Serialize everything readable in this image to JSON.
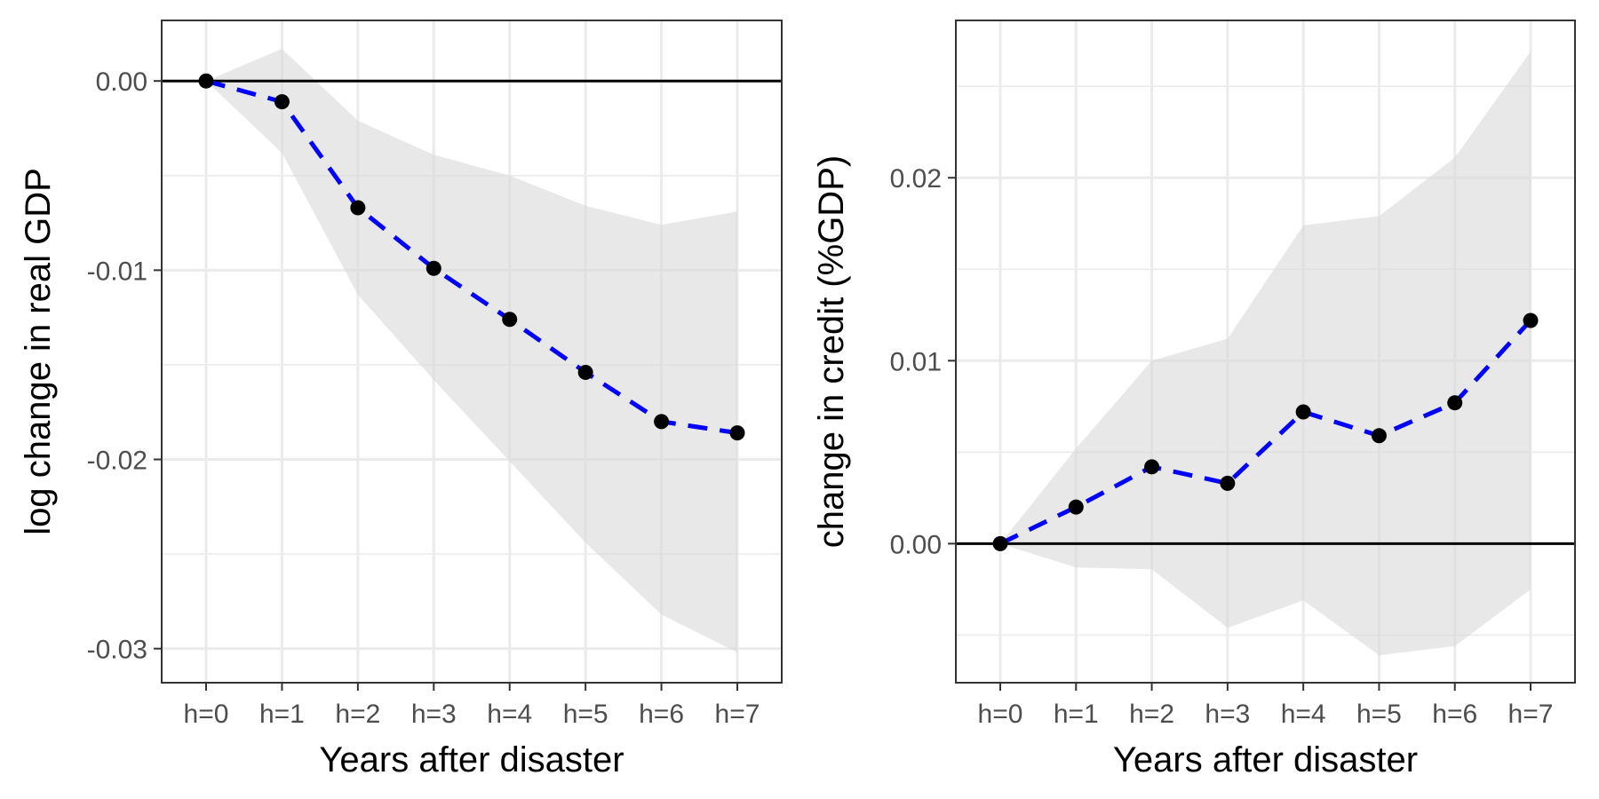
{
  "chart_data": [
    {
      "type": "line",
      "title": "",
      "xlabel": "Years after disaster",
      "ylabel": "log change in real GDP",
      "categories": [
        "h=0",
        "h=1",
        "h=2",
        "h=3",
        "h=4",
        "h=5",
        "h=6",
        "h=7"
      ],
      "series": [
        {
          "values": [
            0.0,
            -0.0011,
            -0.0067,
            -0.0099,
            -0.0126,
            -0.0154,
            -0.018,
            -0.0186
          ]
        }
      ],
      "ci_upper": [
        0.0,
        0.0017,
        -0.0021,
        -0.0039,
        -0.005,
        -0.0066,
        -0.0076,
        -0.0069
      ],
      "ci_lower": [
        0.0,
        -0.0038,
        -0.0113,
        -0.0158,
        -0.0201,
        -0.0244,
        -0.0282,
        -0.0302
      ],
      "ylim": [
        -0.0318,
        0.0032
      ],
      "yticks": [
        0.0,
        -0.01,
        -0.02,
        -0.03
      ],
      "ytick_labels": [
        "0.00",
        "-0.01",
        "-0.02",
        "-0.03"
      ],
      "hline": 0,
      "grid": true,
      "line_style": "dashed",
      "line_color": "#0000ff",
      "point_color": "#000000",
      "band_color": "#d9d9d9"
    },
    {
      "type": "line",
      "title": "",
      "xlabel": "Years after disaster",
      "ylabel": "change in credit (%GDP)",
      "categories": [
        "h=0",
        "h=1",
        "h=2",
        "h=3",
        "h=4",
        "h=5",
        "h=6",
        "h=7"
      ],
      "series": [
        {
          "values": [
            0.0,
            0.002,
            0.0042,
            0.0033,
            0.0072,
            0.0059,
            0.0077,
            0.0122
          ]
        }
      ],
      "ci_upper": [
        0.0,
        0.0052,
        0.01,
        0.0112,
        0.0174,
        0.0179,
        0.0211,
        0.0269
      ],
      "ci_lower": [
        0.0,
        -0.0013,
        -0.0014,
        -0.0046,
        -0.0031,
        -0.0061,
        -0.0056,
        -0.0025
      ],
      "ylim": [
        -0.0076,
        0.0286
      ],
      "yticks": [
        0.0,
        0.01,
        0.02
      ],
      "ytick_labels": [
        "0.00",
        "0.01",
        "0.02"
      ],
      "hline": 0,
      "grid": true,
      "line_style": "dashed",
      "line_color": "#0000ff",
      "point_color": "#000000",
      "band_color": "#d9d9d9"
    }
  ]
}
